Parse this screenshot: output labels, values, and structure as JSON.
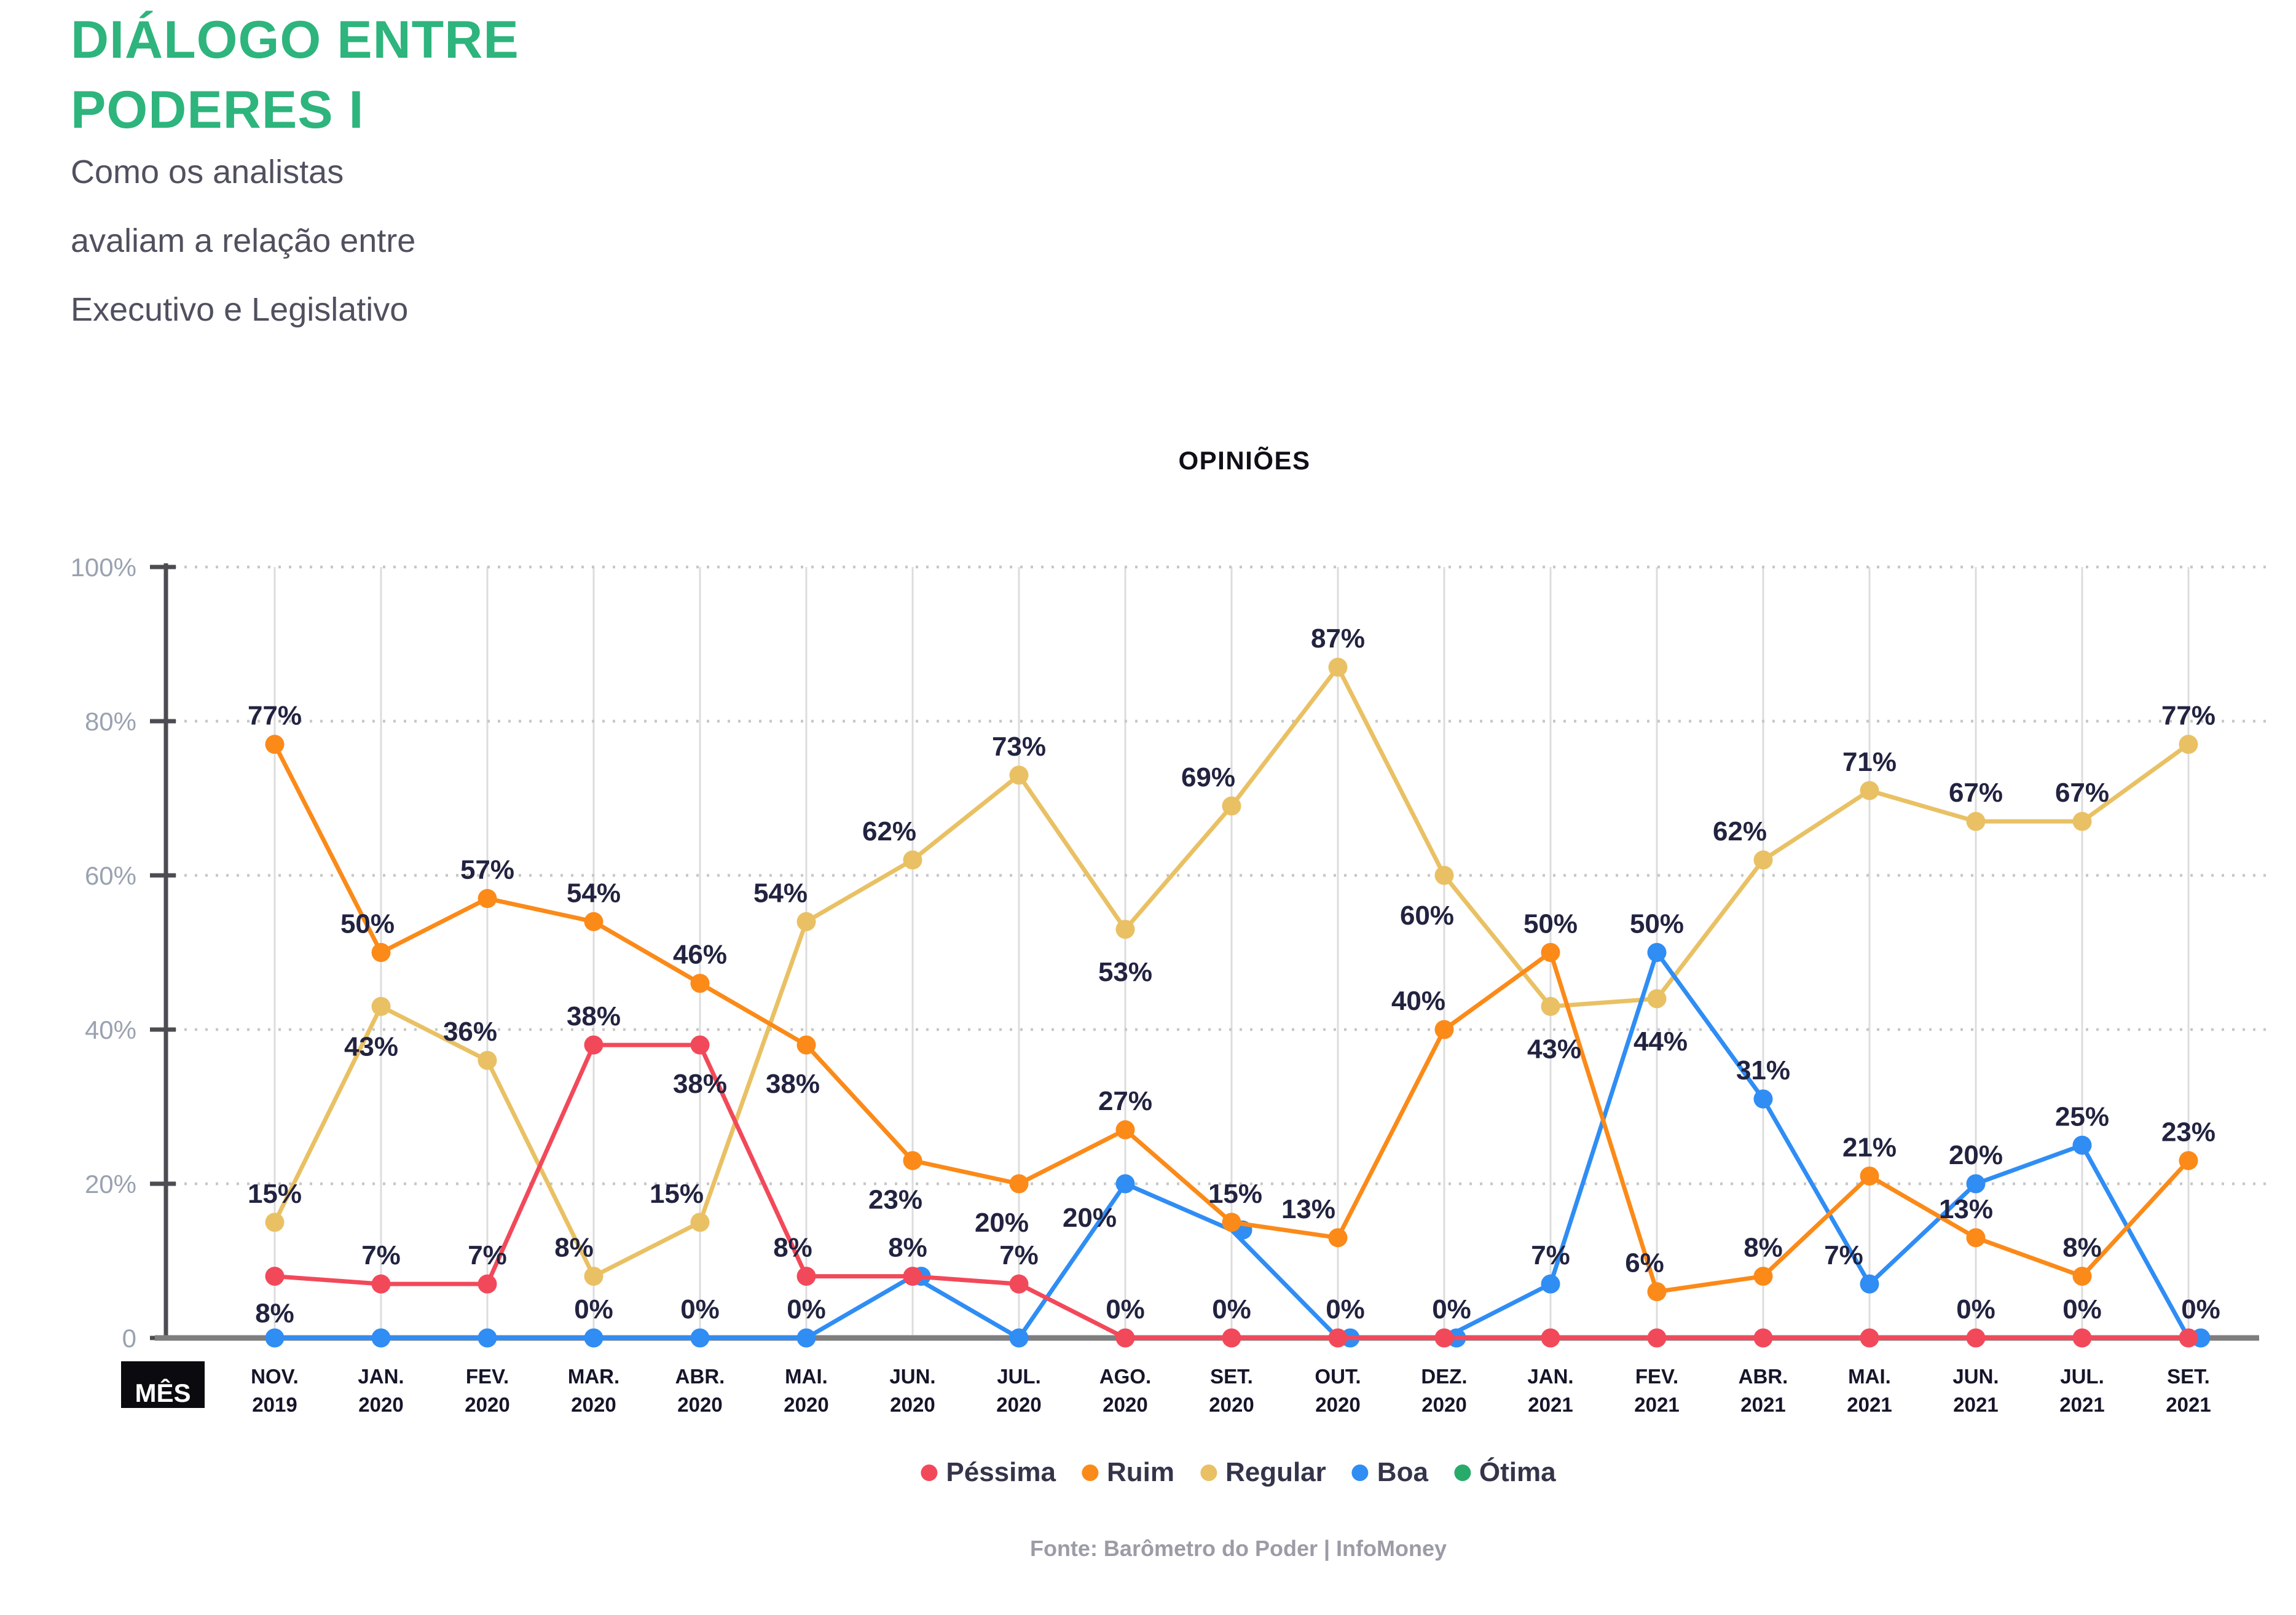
{
  "header": {
    "title_line1": "DIÁLOGO ENTRE",
    "title_line2": "PODERES I",
    "subtitle_lines": [
      "Como os analistas",
      "avaliam a relação entre",
      "Executivo e Legislativo"
    ]
  },
  "chart": {
    "title": "OPINIÕES",
    "x_axis_label": "MÊS"
  },
  "source": "Fonte: Barômetro do Poder | InfoMoney",
  "colors": {
    "title_green": "#2eb47d",
    "subtitle_gray": "#50515f",
    "axis_tick_label_gray": "#9aa2b1",
    "value_label_navy": "#222340",
    "month_label_dark": "#15152a",
    "baseline_gray": "#7e7e7e",
    "axis_dark": "#4c4c52",
    "gridline_light": "#dcdcdc",
    "mes_box_black": "#0b0b0f"
  },
  "legend": [
    {
      "label": "Péssima",
      "color": "#f2495a"
    },
    {
      "label": "Ruim",
      "color": "#fb8a19"
    },
    {
      "label": "Regular",
      "color": "#e9c164"
    },
    {
      "label": "Boa",
      "color": "#2f8df4"
    },
    {
      "label": "Ótima",
      "color": "#28ab6a"
    }
  ],
  "chart_data": {
    "type": "line",
    "title": "OPINIÕES",
    "x_axis_label": "MÊS",
    "categories": [
      [
        "NOV.",
        "2019"
      ],
      [
        "JAN.",
        "2020"
      ],
      [
        "FEV.",
        "2020"
      ],
      [
        "MAR.",
        "2020"
      ],
      [
        "ABR.",
        "2020"
      ],
      [
        "MAI.",
        "2020"
      ],
      [
        "JUN.",
        "2020"
      ],
      [
        "JUL.",
        "2020"
      ],
      [
        "AGO.",
        "2020"
      ],
      [
        "SET.",
        "2020"
      ],
      [
        "OUT.",
        "2020"
      ],
      [
        "DEZ.",
        "2020"
      ],
      [
        "JAN.",
        "2021"
      ],
      [
        "FEV.",
        "2021"
      ],
      [
        "ABR.",
        "2021"
      ],
      [
        "MAI.",
        "2021"
      ],
      [
        "JUN.",
        "2021"
      ],
      [
        "JUL.",
        "2021"
      ],
      [
        "SET.",
        "2021"
      ]
    ],
    "ylim": [
      0,
      100
    ],
    "y_ticks": [
      [
        "100%",
        100
      ],
      [
        "80%",
        80
      ],
      [
        "60%",
        60
      ],
      [
        "40%",
        40
      ],
      [
        "20%",
        20
      ],
      [
        "0",
        0
      ]
    ],
    "grid": {
      "vertical_lines": true,
      "horizontal_dotted": true
    },
    "legend_position": "bottom",
    "draw_order": [
      "Regular",
      "Boa",
      "Ruim",
      "Péssima"
    ],
    "series": [
      {
        "name": "Péssima",
        "color": "#f2495a",
        "values": [
          8,
          7,
          7,
          38,
          38,
          8,
          8,
          7,
          0,
          0,
          0,
          0,
          0,
          0,
          0,
          0,
          0,
          0,
          0
        ],
        "point_labels": [
          [
            0,
            "8%",
            0,
            75
          ],
          [
            1,
            "7%"
          ],
          [
            2,
            "7%"
          ],
          [
            3,
            "38%"
          ],
          [
            4,
            "38%",
            0,
            78
          ],
          [
            5,
            "8%",
            -22
          ],
          [
            6,
            "8%",
            -8
          ],
          [
            7,
            "7%"
          ],
          [
            8,
            "0%"
          ],
          [
            9,
            "0%"
          ],
          [
            10,
            "0%",
            12
          ],
          [
            11,
            "0%",
            12
          ],
          [
            16,
            "0%"
          ],
          [
            17,
            "0%"
          ]
        ]
      },
      {
        "name": "Ruim",
        "color": "#fb8a19",
        "values": [
          77,
          50,
          57,
          54,
          46,
          38,
          23,
          20,
          27,
          15,
          13,
          40,
          50,
          6,
          8,
          21,
          13,
          8,
          23
        ],
        "point_labels": [
          [
            0,
            "77%"
          ],
          [
            1,
            "50%",
            -22
          ],
          [
            2,
            "57%"
          ],
          [
            3,
            "54%"
          ],
          [
            4,
            "46%"
          ],
          [
            5,
            "38%",
            -22,
            78
          ],
          [
            6,
            "23%",
            -28,
            78
          ],
          [
            7,
            "20%",
            -28,
            78
          ],
          [
            8,
            "27%"
          ],
          [
            9,
            "15%",
            6
          ],
          [
            10,
            "13%",
            -48
          ],
          [
            11,
            "40%",
            -42
          ],
          [
            12,
            "50%"
          ],
          [
            13,
            "6%",
            -20
          ],
          [
            14,
            "8%"
          ],
          [
            15,
            "21%"
          ],
          [
            16,
            "13%",
            -16
          ],
          [
            17,
            "8%"
          ],
          [
            18,
            "23%"
          ]
        ]
      },
      {
        "name": "Regular",
        "color": "#e9c164",
        "values": [
          15,
          43,
          36,
          8,
          15,
          54,
          62,
          73,
          53,
          69,
          87,
          60,
          43,
          44,
          62,
          71,
          67,
          67,
          77
        ],
        "point_labels": [
          [
            0,
            "15%"
          ],
          [
            1,
            "43%",
            -16,
            80
          ],
          [
            2,
            "36%",
            -28
          ],
          [
            3,
            "8%",
            -32
          ],
          [
            4,
            "15%",
            -38
          ],
          [
            5,
            "54%",
            -42
          ],
          [
            6,
            "62%",
            -38
          ],
          [
            7,
            "73%"
          ],
          [
            8,
            "53%",
            0,
            84
          ],
          [
            9,
            "69%",
            -38
          ],
          [
            10,
            "87%"
          ],
          [
            11,
            "60%",
            -28,
            80
          ],
          [
            12,
            "43%",
            6,
            84
          ],
          [
            13,
            "44%",
            6,
            84
          ],
          [
            14,
            "62%",
            -38
          ],
          [
            15,
            "71%"
          ],
          [
            16,
            "67%"
          ],
          [
            17,
            "67%"
          ],
          [
            18,
            "77%"
          ]
        ]
      },
      {
        "name": "Boa",
        "color": "#2f8df4",
        "values": [
          0,
          0,
          0,
          0,
          0,
          0,
          8,
          0,
          20,
          14,
          0,
          0,
          7,
          50,
          31,
          7,
          20,
          25,
          0
        ],
        "dot_dx": {
          "6": 14,
          "9": 18,
          "10": 20,
          "11": 20,
          "18": 20
        },
        "point_labels": [
          [
            3,
            "0%"
          ],
          [
            4,
            "0%"
          ],
          [
            5,
            "0%"
          ],
          [
            8,
            "20%",
            -58,
            70
          ],
          [
            12,
            "7%"
          ],
          [
            13,
            "50%"
          ],
          [
            14,
            "31%"
          ],
          [
            15,
            "7%",
            -42
          ],
          [
            16,
            "20%"
          ],
          [
            17,
            "25%"
          ],
          [
            18,
            "0%"
          ]
        ]
      },
      {
        "name": "Ótima",
        "color": "#28ab6a",
        "plotted": false,
        "values": []
      }
    ]
  }
}
